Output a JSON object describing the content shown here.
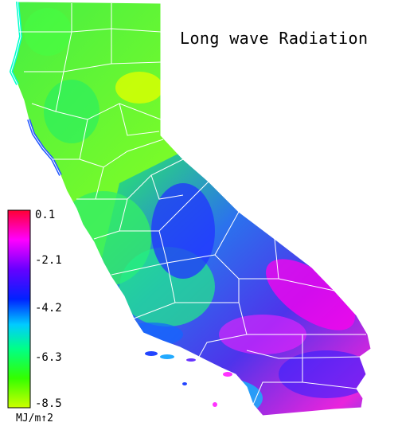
{
  "map": {
    "title": "Long wave Radiation",
    "region": "California",
    "colors": {
      "background": "#ffffff",
      "boundary": "#ffffff",
      "outline": "#000000"
    }
  },
  "legend": {
    "unit": "MJ/m↑2",
    "ticks": [
      {
        "label": "0.1",
        "value": 0.1
      },
      {
        "label": "-2.1",
        "value": -2.1
      },
      {
        "label": "-4.2",
        "value": -4.2
      },
      {
        "label": "-6.3",
        "value": -6.3
      },
      {
        "label": "-8.5",
        "value": -8.5
      }
    ],
    "range": [
      -8.5,
      0.1
    ],
    "colors": [
      "#ff0033",
      "#ff00ff",
      "#6600ff",
      "#0022ff",
      "#00ccff",
      "#00ff88",
      "#33ff00",
      "#ccff00"
    ]
  }
}
